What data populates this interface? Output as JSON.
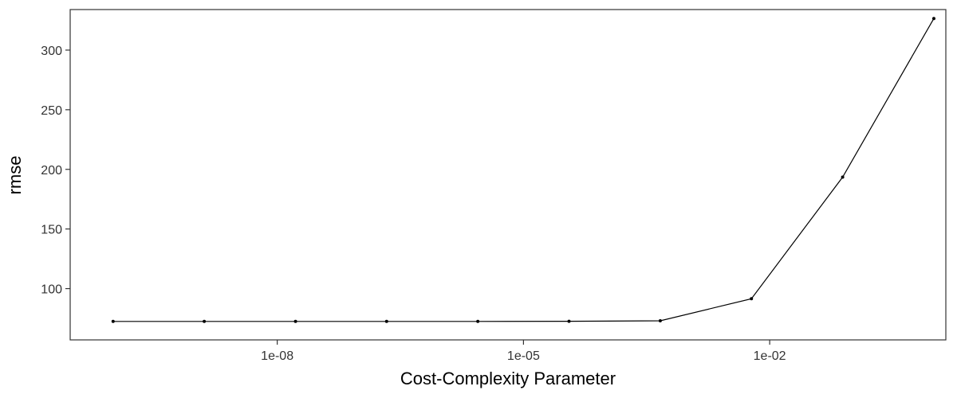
{
  "chart_data": {
    "type": "line",
    "xlabel": "Cost-Complexity Parameter",
    "ylabel": "rmse",
    "x_scale": "log10",
    "xlim": [
      3e-11,
      1.4
    ],
    "ylim": [
      57,
      334
    ],
    "grid": false,
    "x_ticks": [
      {
        "value": 1e-08,
        "label": "1e-08"
      },
      {
        "value": 1e-05,
        "label": "1e-05"
      },
      {
        "value": 0.01,
        "label": "1e-02"
      }
    ],
    "y_ticks": [
      {
        "value": 100,
        "label": "100"
      },
      {
        "value": 150,
        "label": "150"
      },
      {
        "value": 200,
        "label": "200"
      },
      {
        "value": 250,
        "label": "250"
      },
      {
        "value": 300,
        "label": "300"
      }
    ],
    "series": [
      {
        "color": "#000000",
        "points": [
          {
            "x": 1e-10,
            "y": 72.5
          },
          {
            "x": 1.29e-09,
            "y": 72.5
          },
          {
            "x": 1.67e-08,
            "y": 72.5
          },
          {
            "x": 2.15e-07,
            "y": 72.5
          },
          {
            "x": 2.78e-06,
            "y": 72.5
          },
          {
            "x": 3.59e-05,
            "y": 72.6
          },
          {
            "x": 0.000464,
            "y": 73.0
          },
          {
            "x": 0.00599,
            "y": 91.5
          },
          {
            "x": 0.0774,
            "y": 193.5
          },
          {
            "x": 1.0,
            "y": 326.5
          }
        ]
      }
    ]
  }
}
